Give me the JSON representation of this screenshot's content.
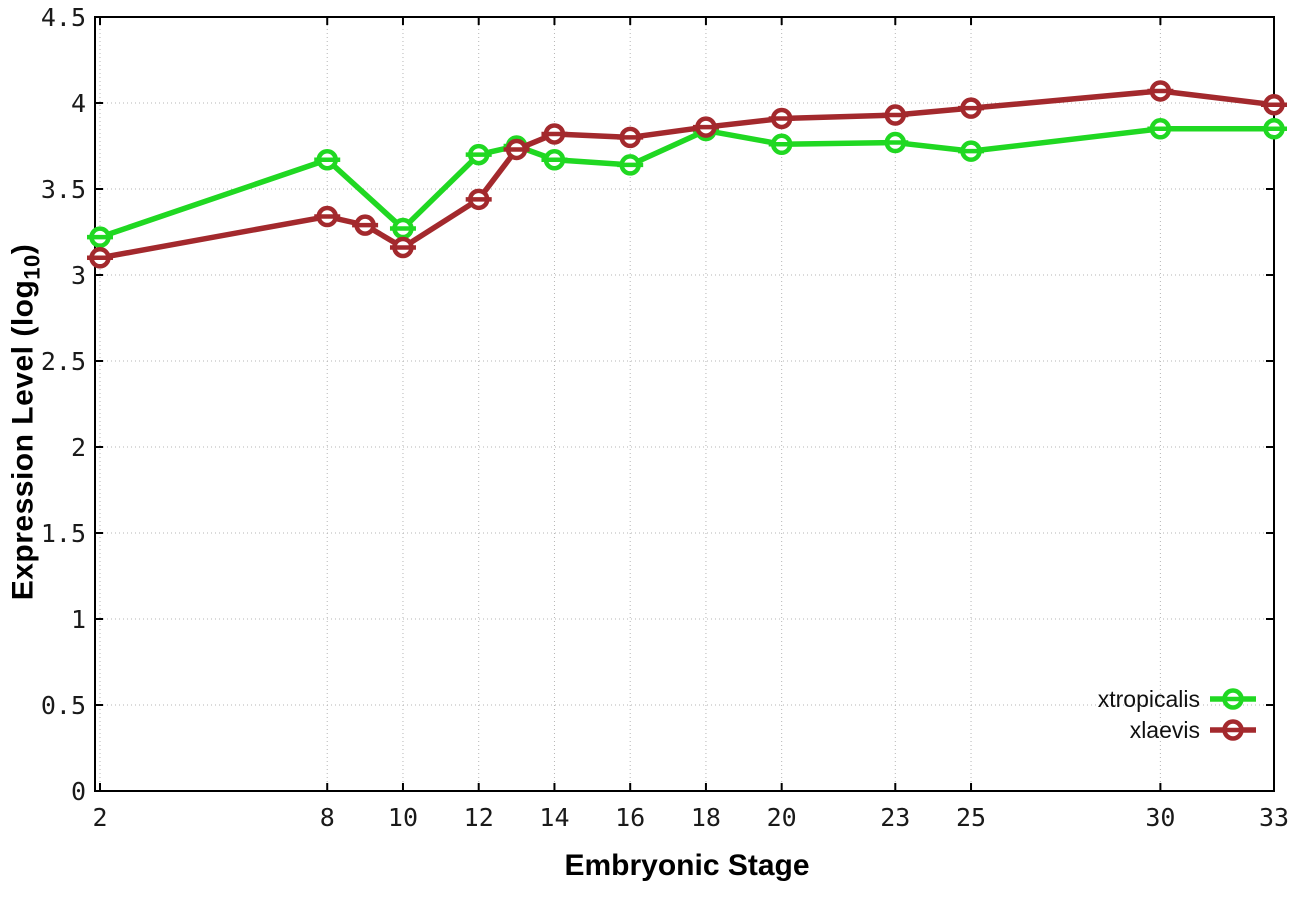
{
  "chart_data": {
    "type": "line",
    "title": "",
    "xlabel": "Embryonic Stage",
    "ylabel": "Expression Level (log10)",
    "ylabel_parts": {
      "pre": "Expression Level (log",
      "sub": "10",
      "post": ")"
    },
    "x_ticks": [
      2,
      8,
      10,
      12,
      14,
      16,
      18,
      20,
      23,
      25,
      30,
      33
    ],
    "y_ticks": [
      "0",
      "0.5",
      "1",
      "1.5",
      "2",
      "2.5",
      "3",
      "3.5",
      "4",
      "4.5"
    ],
    "xlim": [
      2,
      33
    ],
    "ylim": [
      0,
      4.5
    ],
    "grid": true,
    "grid_style": "dotted",
    "grid_color": "#b5b5b5",
    "border_color": "#000000",
    "legend_position": "inside-bottom-right",
    "marker": "open-circle-with-errorbar-dash",
    "series": [
      {
        "name": "xtropicalis",
        "color": "#20d822",
        "x": [
          2,
          8,
          10,
          12,
          13,
          14,
          16,
          18,
          20,
          23,
          25,
          30,
          33
        ],
        "y": [
          3.22,
          3.67,
          3.27,
          3.7,
          3.75,
          3.67,
          3.64,
          3.84,
          3.76,
          3.77,
          3.72,
          3.85,
          3.85
        ]
      },
      {
        "name": "xlaevis",
        "color": "#a3292d",
        "x": [
          2,
          8,
          9,
          10,
          12,
          13,
          14,
          16,
          18,
          20,
          23,
          25,
          30,
          33
        ],
        "y": [
          3.1,
          3.34,
          3.29,
          3.16,
          3.44,
          3.73,
          3.82,
          3.8,
          3.86,
          3.91,
          3.93,
          3.97,
          4.07,
          3.99
        ]
      }
    ]
  }
}
